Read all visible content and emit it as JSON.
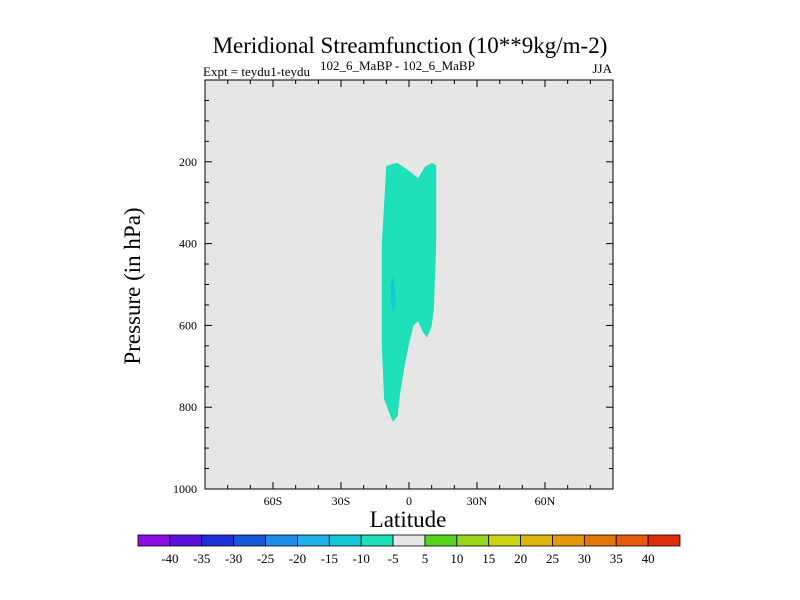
{
  "chart_data": {
    "type": "contour",
    "title": "Meridional Streamfunction (10**9kg/m-2)",
    "subtitle_left": "Expt = teydu1-teydu",
    "subtitle_superscript": "102_6_MaBP - 102_6_MaBP",
    "subtitle_right": "JJA",
    "xlabel": "Latitude",
    "ylabel": "Pressure (in hPa)",
    "xlim": [
      -90,
      90
    ],
    "ylim": [
      1000,
      0
    ],
    "x_ticks": [
      {
        "value": -60,
        "label": "60S"
      },
      {
        "value": -30,
        "label": "30S"
      },
      {
        "value": 0,
        "label": "0"
      },
      {
        "value": 30,
        "label": "30N"
      },
      {
        "value": 60,
        "label": "60N"
      }
    ],
    "y_ticks": [
      {
        "value": 200,
        "label": "200"
      },
      {
        "value": 400,
        "label": "400"
      },
      {
        "value": 600,
        "label": "600"
      },
      {
        "value": 800,
        "label": "800"
      },
      {
        "value": 1000,
        "label": "1000"
      }
    ],
    "background_color": "#e6e6e6",
    "regions": [
      {
        "name": "band -10 to -5",
        "color": "#1ee0b9",
        "polygon": [
          [
            -7,
            205
          ],
          [
            -5,
            203
          ],
          [
            0,
            222
          ],
          [
            4,
            240
          ],
          [
            7,
            212
          ],
          [
            10,
            203
          ],
          [
            12,
            208
          ],
          [
            12,
            400
          ],
          [
            11,
            560
          ],
          [
            10,
            600
          ],
          [
            8,
            630
          ],
          [
            6,
            615
          ],
          [
            4,
            590
          ],
          [
            2,
            600
          ],
          [
            0,
            645
          ],
          [
            -2,
            700
          ],
          [
            -4,
            770
          ],
          [
            -5,
            822
          ],
          [
            -7,
            835
          ],
          [
            -8,
            825
          ],
          [
            -11,
            780
          ],
          [
            -12,
            650
          ],
          [
            -12,
            400
          ],
          [
            -10,
            210
          ]
        ]
      },
      {
        "name": "band -15 to -10",
        "color": "#14c8d8",
        "polygon": [
          [
            -7,
            480
          ],
          [
            -6,
            520
          ],
          [
            -6,
            550
          ],
          [
            -7,
            566
          ],
          [
            -8,
            540
          ],
          [
            -8,
            500
          ]
        ]
      }
    ],
    "colorbar": {
      "labels": [
        "-40",
        "-35",
        "-30",
        "-25",
        "-20",
        "-15",
        "-10",
        "-5",
        "5",
        "10",
        "15",
        "20",
        "25",
        "30",
        "35",
        "40"
      ],
      "colors": [
        "#8a10e0",
        "#5a10d8",
        "#2030d8",
        "#1458d8",
        "#1e8ee8",
        "#1eb0e8",
        "#14c8d8",
        "#1ee0b9",
        "#e6e6e6",
        "#55d21e",
        "#98d61e",
        "#c8d414",
        "#dcb40a",
        "#e6960a",
        "#e6780a",
        "#e65a0a",
        "#e02e0a"
      ]
    }
  }
}
